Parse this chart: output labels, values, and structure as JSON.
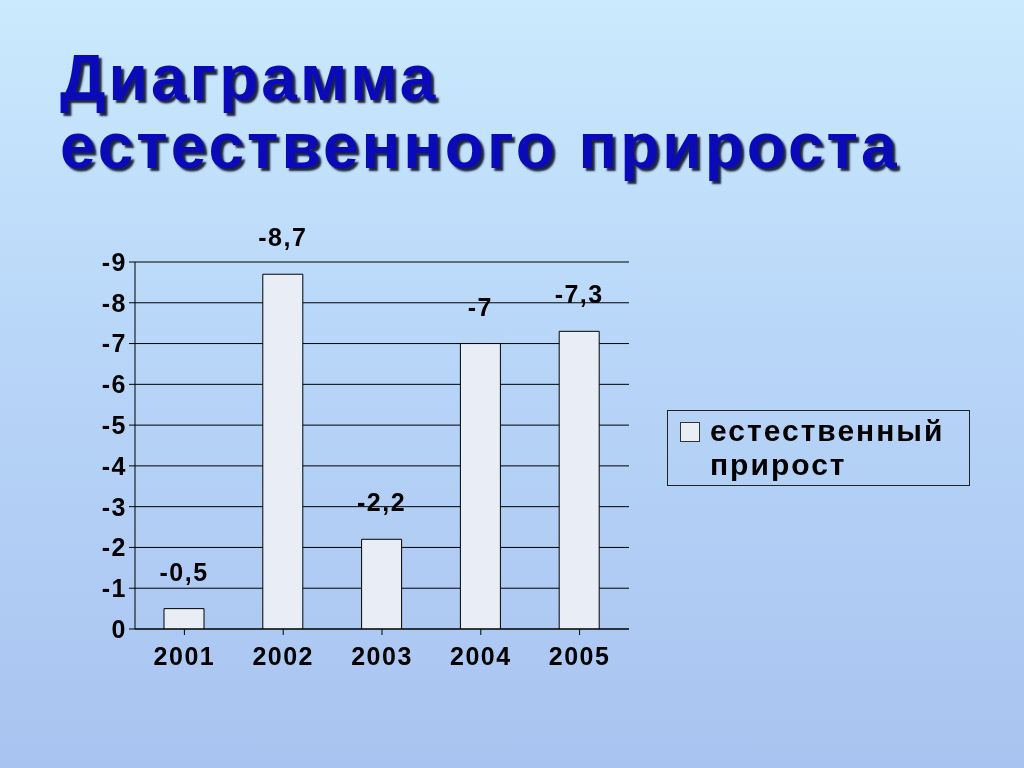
{
  "chart_data": {
    "type": "bar",
    "title": "Диаграмма\nестественного прироста",
    "categories": [
      "2001",
      "2002",
      "2003",
      "2004",
      "2005"
    ],
    "series": [
      {
        "name": "естественный прирост",
        "color": "#e9eef6",
        "values": [
          -0.5,
          -8.7,
          -2.2,
          -7,
          -7.3
        ],
        "value_labels": [
          "-0,5",
          "-8,7",
          "-2,2",
          "-7",
          "-7,3"
        ]
      }
    ],
    "ylim": [
      0,
      -9
    ],
    "yticks": [
      0,
      -1,
      -2,
      -3,
      -4,
      -5,
      -6,
      -7,
      -8,
      -9
    ],
    "grid": "y",
    "legend": "right"
  }
}
